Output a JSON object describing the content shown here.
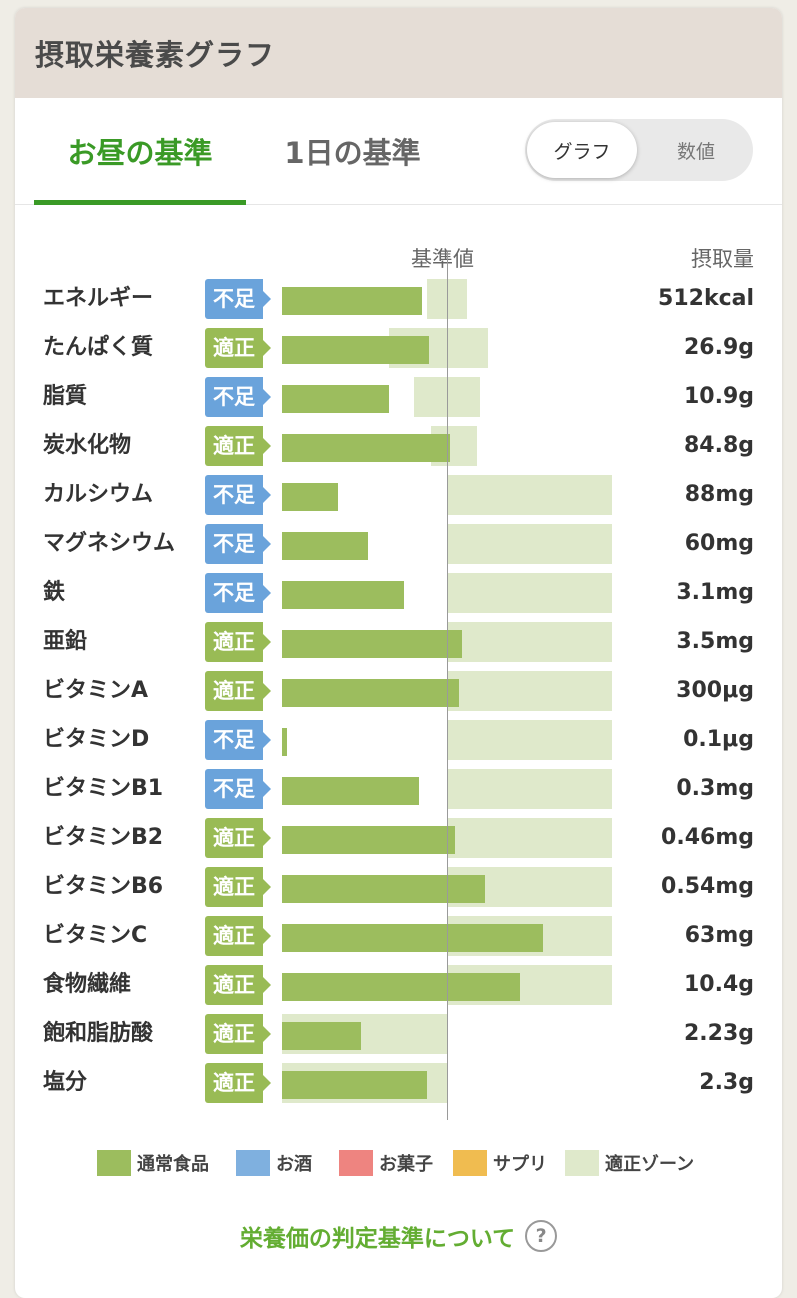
{
  "header": {
    "title": "摂取栄養素グラフ"
  },
  "tabs": {
    "lunch": "お昼の基準",
    "day": "1日の基準"
  },
  "view_toggle": {
    "graph": "グラフ",
    "numbers": "数値"
  },
  "columns": {
    "reference": "基準値",
    "intake": "摂取量"
  },
  "chart_data": {
    "type": "bar",
    "categories": [
      "エネルギー",
      "たんぱく質",
      "脂質",
      "炭水化物",
      "カルシウム",
      "マグネシウム",
      "鉄",
      "亜鉛",
      "ビタミンA",
      "ビタミンD",
      "ビタミンB1",
      "ビタミンB2",
      "ビタミンB6",
      "ビタミンC",
      "食物繊維",
      "飽和脂肪酸",
      "塩分"
    ],
    "amounts": [
      "512kcal",
      "26.9g",
      "10.9g",
      "84.8g",
      "88mg",
      "60mg",
      "3.1mg",
      "3.5mg",
      "300μg",
      "0.1μg",
      "0.3mg",
      "0.46mg",
      "0.54mg",
      "63mg",
      "10.4g",
      "2.23g",
      "2.3g"
    ],
    "status": [
      "不足",
      "適正",
      "不足",
      "適正",
      "不足",
      "不足",
      "不足",
      "適正",
      "適正",
      "不足",
      "不足",
      "適正",
      "適正",
      "適正",
      "適正",
      "適正",
      "適正"
    ],
    "series": [
      {
        "values": [
          0.85,
          0.89,
          0.65,
          1.02,
          0.34,
          0.52,
          0.74,
          1.09,
          1.07,
          0.03,
          0.83,
          1.05,
          1.23,
          1.58,
          1.44,
          0.48,
          0.88
        ]
      }
    ],
    "range_unit": "fraction of reference value",
    "appropriate_range": [
      [
        0.88,
        1.12
      ],
      [
        0.65,
        1.25
      ],
      [
        0.8,
        1.2
      ],
      [
        0.9,
        1.18
      ],
      [
        1.0,
        2.0
      ],
      [
        1.0,
        2.0
      ],
      [
        1.0,
        2.0
      ],
      [
        1.0,
        2.0
      ],
      [
        1.0,
        2.0
      ],
      [
        1.0,
        2.0
      ],
      [
        1.0,
        2.0
      ],
      [
        1.0,
        2.0
      ],
      [
        1.0,
        2.0
      ],
      [
        1.0,
        2.0
      ],
      [
        1.0,
        2.0
      ],
      [
        0,
        1.0
      ],
      [
        0,
        1.0
      ]
    ],
    "reference_value": 1.0
  },
  "legend": {
    "items": [
      {
        "label": "通常食品",
        "color": "#9cbd5e"
      },
      {
        "label": "お酒",
        "color": "#7fb0df"
      },
      {
        "label": "お菓子",
        "color": "#ee8480"
      },
      {
        "label": "サプリ",
        "color": "#f0bc50"
      },
      {
        "label": "適正ゾーン",
        "color": "#dfe9cb"
      }
    ]
  },
  "footer": {
    "link": "栄養価の判定基準について",
    "help": "?"
  },
  "colors": {
    "accent": "#3a9a26",
    "badge_low": "#6aa3db",
    "badge_ok": "#99bb55",
    "bar": "#9cbd5e",
    "zone": "#dfe9cb"
  }
}
